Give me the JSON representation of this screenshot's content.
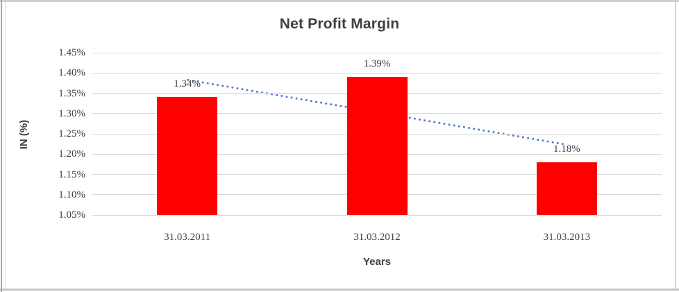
{
  "chart_data": {
    "type": "bar",
    "title": "Net Profit Margin",
    "xlabel": "Years",
    "ylabel": "IN (%)",
    "categories": [
      "31.03.2011",
      "31.03.2012",
      "31.03.2013"
    ],
    "values": [
      1.34,
      1.39,
      1.18
    ],
    "data_labels": [
      "1.34%",
      "1.39%",
      "1.18%"
    ],
    "ylim": [
      1.05,
      1.45
    ],
    "ytick_values": [
      1.45,
      1.4,
      1.35,
      1.3,
      1.25,
      1.2,
      1.15,
      1.1,
      1.05
    ],
    "ytick_labels": [
      "1.45%",
      "1.40%",
      "1.35%",
      "1.30%",
      "1.25%",
      "1.20%",
      "1.15%",
      "1.10%",
      "1.05%"
    ],
    "grid": true,
    "legend": "none",
    "bar_color": "#ff0000",
    "trendline": {
      "type": "linear",
      "style": "dotted",
      "color": "#4472c4",
      "endpoint_values": [
        1.3833,
        1.2233
      ]
    },
    "colors": {
      "title_text": "#3f3f3f",
      "axis_text": "#3f3f3f",
      "gridline": "#d9d9d9",
      "chart_border": "#d3d3d3"
    }
  }
}
